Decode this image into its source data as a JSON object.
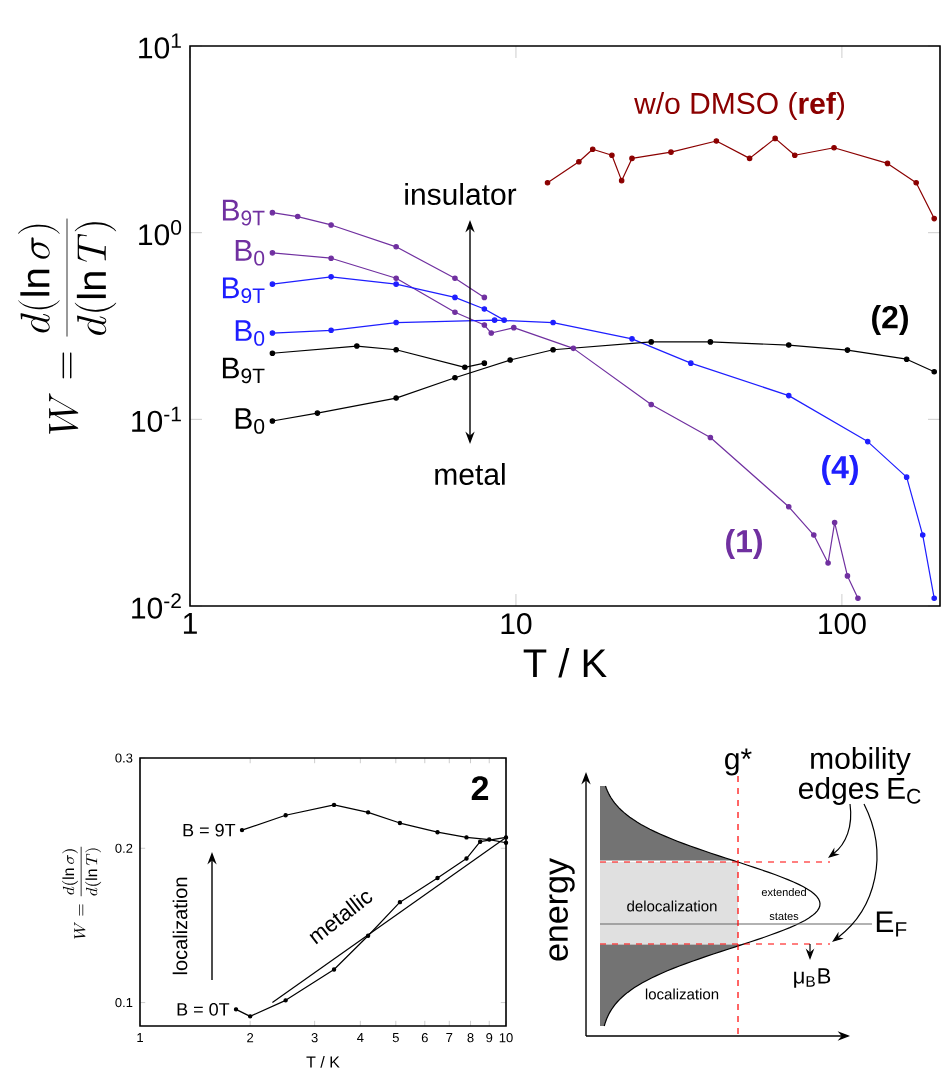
{
  "chart_data": [
    {
      "type": "line",
      "xlabel": "T / K",
      "ylabel": "W = \\frac{d(\\ln\\sigma)}{d(\\ln T)}",
      "log": "xy",
      "xlim": [
        1,
        200
      ],
      "ylim": [
        0.01,
        10
      ],
      "xticks": [
        1,
        10,
        100
      ],
      "yticks": [
        {
          "value": 0.01,
          "label": "10$^{-2}$"
        },
        {
          "value": 0.1,
          "label": "10$^{-1}$"
        },
        {
          "value": 1,
          "label": "10$^{0}$"
        },
        {
          "value": 10,
          "label": "10$^{1}$"
        }
      ],
      "marker": "circle",
      "grid": false,
      "legend": false,
      "series": [
        {
          "name": "B$_{9T}$",
          "color": "#7030a0",
          "x": [
            1.79,
            2.14,
            2.71,
            4.29,
            6.5,
            8.0
          ],
          "values": [
            1.28,
            1.22,
            1.1,
            0.84,
            0.57,
            0.45
          ]
        },
        {
          "name": "B$_{0}$",
          "color": "#7030a0",
          "x": [
            1.79,
            2.71,
            4.29,
            6.5,
            8.0,
            8.4,
            9.85,
            15,
            26,
            39.5,
            68.7,
            82,
            90.7,
            95,
            104,
            112
          ],
          "values": [
            0.78,
            0.73,
            0.57,
            0.375,
            0.32,
            0.29,
            0.31,
            0.24,
            0.12,
            0.08,
            0.034,
            0.024,
            0.017,
            0.028,
            0.0145,
            0.011
          ]
        },
        {
          "name": "B$_{9T}$",
          "color": "#1e1eff",
          "x": [
            1.79,
            2.71,
            4.29,
            6.5,
            8.0,
            9.2
          ],
          "values": [
            0.53,
            0.58,
            0.53,
            0.45,
            0.39,
            0.34
          ]
        },
        {
          "name": "B$_{0}$",
          "color": "#1e1eff",
          "x": [
            1.79,
            2.71,
            4.29,
            8.6,
            13,
            22.7,
            34.4,
            68.7,
            120,
            158,
            177,
            192
          ],
          "values": [
            0.29,
            0.3,
            0.33,
            0.34,
            0.33,
            0.27,
            0.2,
            0.134,
            0.076,
            0.049,
            0.024,
            0.011
          ]
        },
        {
          "name": "B$_{9T}$",
          "color": "#000000",
          "x": [
            1.79,
            3.25,
            4.29,
            6.97,
            8.0
          ],
          "values": [
            0.226,
            0.247,
            0.236,
            0.19,
            0.2
          ]
        },
        {
          "name": "B$_{0}$",
          "color": "#000000",
          "x": [
            1.79,
            2.46,
            4.29,
            6.5,
            9.6,
            13,
            26,
            39.5,
            68.7,
            104,
            158,
            192
          ],
          "values": [
            0.098,
            0.108,
            0.13,
            0.167,
            0.208,
            0.236,
            0.26,
            0.26,
            0.25,
            0.235,
            0.21,
            0.18
          ]
        },
        {
          "color": "#8b0000",
          "x": [
            12.5,
            15.6,
            17.2,
            19.7,
            21.1,
            22.7,
            29.9,
            41.2,
            52.1,
            62.4,
            71.7,
            94.6,
            138,
            169,
            192
          ],
          "values": [
            1.85,
            2.4,
            2.8,
            2.6,
            1.9,
            2.5,
            2.7,
            3.1,
            2.5,
            3.2,
            2.6,
            2.85,
            2.35,
            1.85,
            1.19
          ]
        }
      ],
      "annotations": [
        "w/o DMSO (**ref**)",
        "insulator",
        "metal",
        "(2)",
        "(4)",
        "(1)"
      ]
    },
    {
      "type": "line",
      "xlabel": "T / K",
      "ylabel": "W = \\frac{d(\\ln\\sigma)}{d(\\ln T)}",
      "log": "xy",
      "xlim": [
        1,
        10
      ],
      "ylim": [
        0.09,
        0.3
      ],
      "xticks": [
        1,
        2,
        3,
        4,
        5,
        6,
        7,
        8,
        9,
        10
      ],
      "yticks": [
        0.1,
        0.2,
        0.3
      ],
      "marker": "circle",
      "grid": false,
      "legend": false,
      "series": [
        {
          "name": "B = 9T",
          "color": "#000000",
          "x": [
            1.9,
            2.5,
            3.39,
            4.2,
            5.13,
            6.5,
            7.8,
            9.0,
            10
          ],
          "values": [
            0.217,
            0.232,
            0.243,
            0.235,
            0.224,
            0.215,
            0.21,
            0.208,
            0.205
          ]
        },
        {
          "name": "B = 0T",
          "color": "#000000",
          "x": [
            1.83,
            2.0,
            2.5,
            3.39,
            4.2,
            5.13,
            6.5,
            7.8,
            8.5,
            10
          ],
          "values": [
            0.097,
            0.094,
            0.101,
            0.116,
            0.135,
            0.157,
            0.175,
            0.191,
            0.206,
            0.21
          ]
        },
        {
          "color": "#000000",
          "marker": "none",
          "x": [
            2.3,
            10
          ],
          "values": [
            0.1,
            0.21
          ]
        }
      ],
      "annotations": [
        "2",
        "localization",
        "metallic"
      ]
    },
    {
      "type": "other",
      "annotations": [
        "energy",
        "g*",
        "mobility edges E$_{C}$",
        "delocalization",
        "extended states",
        "E$_{F}$",
        "localization",
        "μ$_{B}$B"
      ]
    }
  ]
}
